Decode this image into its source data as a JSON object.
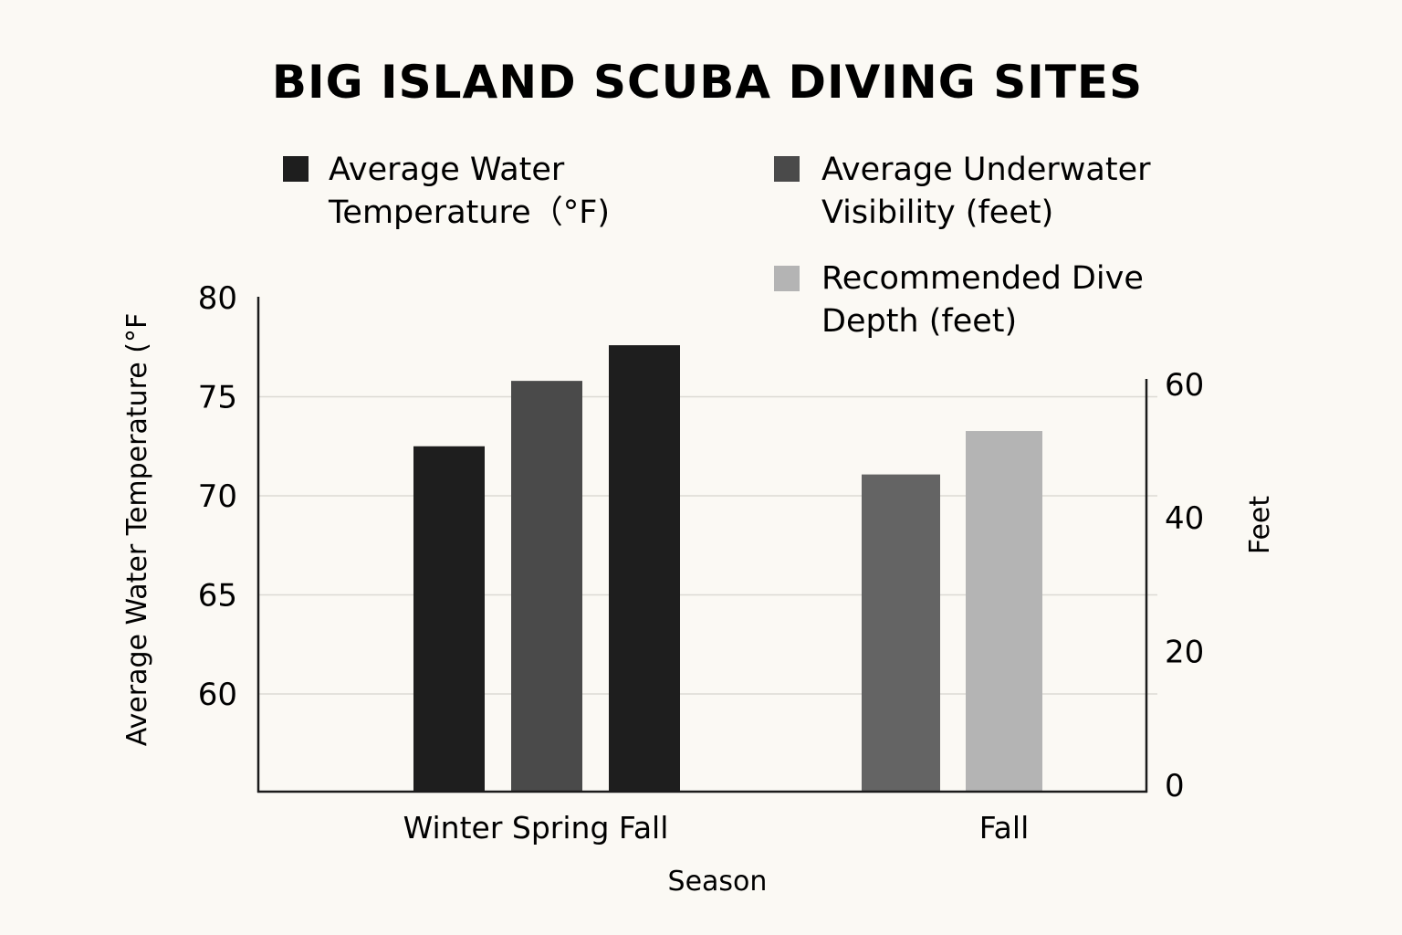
{
  "chart_data": {
    "type": "bar",
    "title": "BIG ISLAND SCUBA DIVING SITES",
    "xlabel": "Season",
    "ylabel_left": "Average Water Temperature (°F",
    "ylabel_right": "Feet",
    "left_axis": {
      "ylim": [
        55,
        80
      ],
      "ticks": [
        60,
        65,
        70,
        75,
        80
      ]
    },
    "right_axis": {
      "ylim": [
        0,
        60
      ],
      "ticks": [
        0,
        20,
        40,
        60
      ]
    },
    "grid": true,
    "legend_placement": "top",
    "groups": [
      {
        "label": "Winter Spring  Fall",
        "axis": "left",
        "bars": [
          {
            "season": "Winter",
            "series": "Average Water Temperature (°F)",
            "value": 72.5,
            "color": "#1e1e1e"
          },
          {
            "season": "Spring",
            "series": "Average Underwater Visibility (feet)",
            "value": 75.8,
            "color": "#4a4a4a"
          },
          {
            "season": "Fall",
            "series": "Average Water Temperature (°F)",
            "value": 77.6,
            "color": "#1e1e1e"
          }
        ]
      },
      {
        "label": "Fall",
        "axis": "right",
        "bars": [
          {
            "season": "Fall",
            "series": "Average Underwater Visibility (feet)",
            "value": 46.5,
            "color": "#646464"
          },
          {
            "season": "Fall",
            "series": "Recommended Dive Depth (feet)",
            "value": 53,
            "color": "#b4b4b4"
          }
        ]
      }
    ],
    "legend": [
      {
        "lines": [
          "Average Water",
          "Temperature（°F)"
        ],
        "color": "#1e1e1e"
      },
      {
        "lines": [
          "Average Underwater",
          "Visibility (feet)"
        ],
        "color": "#4a4a4a"
      },
      {
        "lines": [
          "Recommended Dive",
          "Depth (feet)"
        ],
        "color": "#b4b4b4"
      }
    ]
  }
}
